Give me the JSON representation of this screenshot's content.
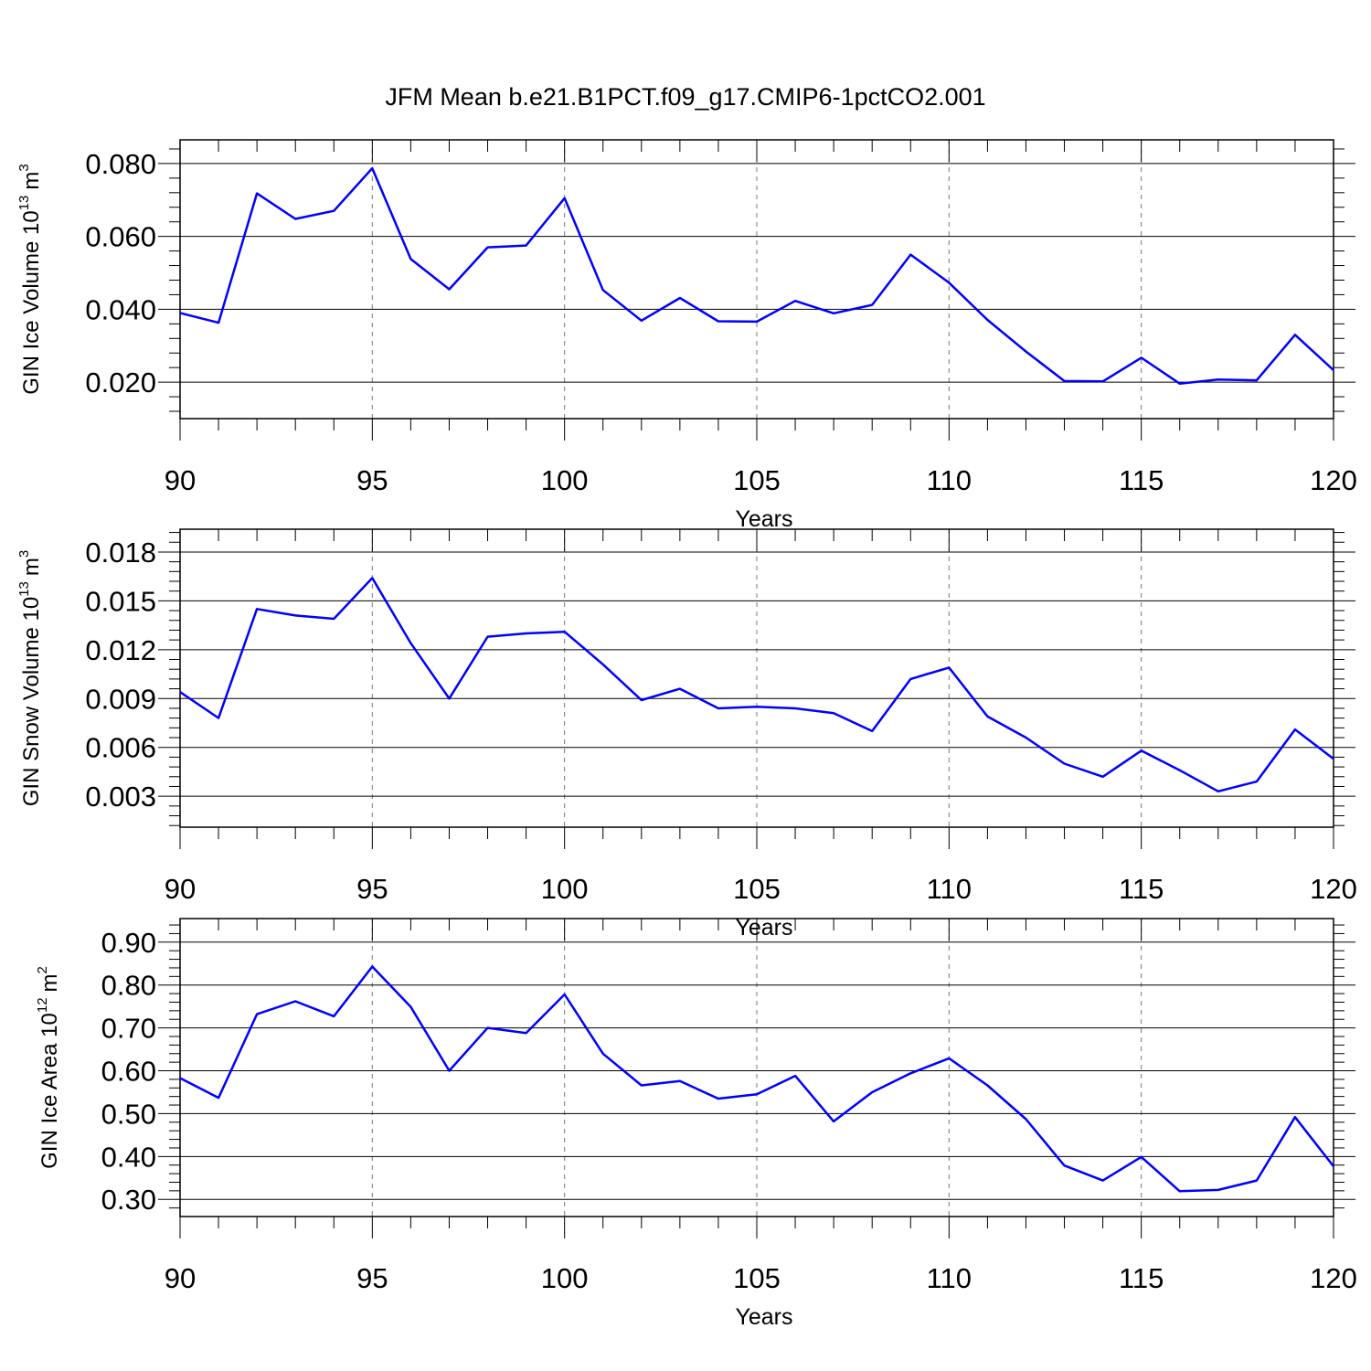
{
  "title": "JFM Mean b.e21.B1PCT.f09_g17.CMIP6-1pctCO2.001",
  "colors": {
    "line": "#0000ff",
    "frame": "#000000",
    "grid": "#777777"
  },
  "chart_data": [
    {
      "type": "line",
      "ylabel": {
        "text": "GIN Ice Volume 10",
        "exponent": "13",
        "unit": "m",
        "unit_exponent": "3"
      },
      "xlabel": "Years",
      "xlim": [
        90,
        120
      ],
      "ylim": [
        0.01,
        0.0865
      ],
      "xticks": [
        "90",
        "95",
        "100",
        "105",
        "110",
        "115",
        "120"
      ],
      "yticks": [
        "0.080",
        "0.060",
        "0.040",
        "0.020"
      ],
      "ytick_values": [
        0.08,
        0.06,
        0.04,
        0.02
      ],
      "grid": "dashed vertical at major x ticks",
      "series": [
        {
          "x": [
            90,
            91,
            92,
            93,
            94,
            95,
            96,
            97,
            98,
            99,
            100,
            101,
            102,
            103,
            104,
            105,
            106,
            107,
            108,
            109,
            110,
            111,
            112,
            113,
            114,
            115,
            116,
            117,
            118,
            119,
            120
          ],
          "values": [
            0.039,
            0.0363,
            0.0718,
            0.0648,
            0.067,
            0.0787,
            0.0538,
            0.0455,
            0.057,
            0.0575,
            0.0705,
            0.0453,
            0.0369,
            0.0431,
            0.0367,
            0.0366,
            0.0423,
            0.0389,
            0.0412,
            0.055,
            0.0473,
            0.0371,
            0.0284,
            0.0203,
            0.0202,
            0.0267,
            0.0196,
            0.0207,
            0.0205,
            0.033,
            0.0233
          ]
        }
      ]
    },
    {
      "type": "line",
      "ylabel": {
        "text": "GIN Snow Volume 10",
        "exponent": "13",
        "unit": "m",
        "unit_exponent": "3"
      },
      "xlabel": "Years",
      "xlim": [
        90,
        120
      ],
      "ylim": [
        0.0011,
        0.0194
      ],
      "xticks": [
        "90",
        "95",
        "100",
        "105",
        "110",
        "115",
        "120"
      ],
      "yticks": [
        "0.018",
        "0.015",
        "0.012",
        "0.009",
        "0.006",
        "0.003"
      ],
      "ytick_values": [
        0.018,
        0.015,
        0.012,
        0.009,
        0.006,
        0.003
      ],
      "grid": "dashed vertical at major x ticks",
      "series": [
        {
          "x": [
            90,
            91,
            92,
            93,
            94,
            95,
            96,
            97,
            98,
            99,
            100,
            101,
            102,
            103,
            104,
            105,
            106,
            107,
            108,
            109,
            110,
            111,
            112,
            113,
            114,
            115,
            116,
            117,
            118,
            119,
            120
          ],
          "values": [
            0.0094,
            0.0078,
            0.0145,
            0.0141,
            0.0139,
            0.0164,
            0.0124,
            0.009,
            0.0128,
            0.013,
            0.0131,
            0.0111,
            0.0089,
            0.0096,
            0.0084,
            0.0085,
            0.0084,
            0.0081,
            0.007,
            0.0102,
            0.0109,
            0.0079,
            0.0066,
            0.005,
            0.0042,
            0.0058,
            0.0046,
            0.0033,
            0.0039,
            0.0071,
            0.0053
          ]
        }
      ]
    },
    {
      "type": "line",
      "ylabel": {
        "text": "GIN Ice Area 10",
        "exponent": "12",
        "unit": "m",
        "unit_exponent": "2"
      },
      "xlabel": "Years",
      "xlim": [
        90,
        120
      ],
      "ylim": [
        0.26,
        0.955
      ],
      "xticks": [
        "90",
        "95",
        "100",
        "105",
        "110",
        "115",
        "120"
      ],
      "yticks": [
        "0.90",
        "0.80",
        "0.70",
        "0.60",
        "0.50",
        "0.40",
        "0.30"
      ],
      "ytick_values": [
        0.9,
        0.8,
        0.7,
        0.6,
        0.5,
        0.4,
        0.3
      ],
      "grid": "dashed vertical at major x ticks",
      "series": [
        {
          "x": [
            90,
            91,
            92,
            93,
            94,
            95,
            96,
            97,
            98,
            99,
            100,
            101,
            102,
            103,
            104,
            105,
            106,
            107,
            108,
            109,
            110,
            111,
            112,
            113,
            114,
            115,
            116,
            117,
            118,
            119,
            120
          ],
          "values": [
            0.583,
            0.537,
            0.732,
            0.762,
            0.727,
            0.843,
            0.749,
            0.6,
            0.7,
            0.688,
            0.778,
            0.64,
            0.566,
            0.576,
            0.535,
            0.545,
            0.588,
            0.482,
            0.55,
            0.594,
            0.629,
            0.566,
            0.487,
            0.379,
            0.344,
            0.399,
            0.319,
            0.322,
            0.344,
            0.492,
            0.377
          ]
        }
      ]
    }
  ]
}
